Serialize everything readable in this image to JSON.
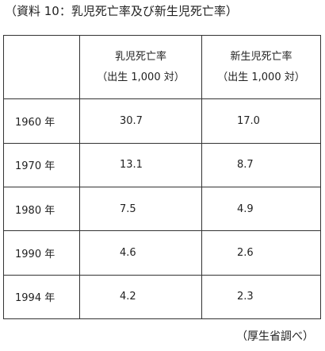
{
  "caption": "（資料 10：乳児死亡率及び新生児死亡率）",
  "table": {
    "corner_label": "",
    "columns": [
      {
        "title": "乳児死亡率",
        "unit": "（出生 1,000 対）"
      },
      {
        "title": "新生児死亡率",
        "unit": "（出生 1,000 対）"
      }
    ],
    "rows": [
      {
        "year": "1960 年",
        "infant": "30.7",
        "neonatal": "17.0"
      },
      {
        "year": "1970 年",
        "infant": "13.1",
        "neonatal": "8.7"
      },
      {
        "year": "1980 年",
        "infant": "7.5",
        "neonatal": "4.9"
      },
      {
        "year": "1990 年",
        "infant": "4.6",
        "neonatal": "2.6"
      },
      {
        "year": "1994 年",
        "infant": "4.2",
        "neonatal": "2.3"
      }
    ]
  },
  "source": "（厚生省調べ）"
}
